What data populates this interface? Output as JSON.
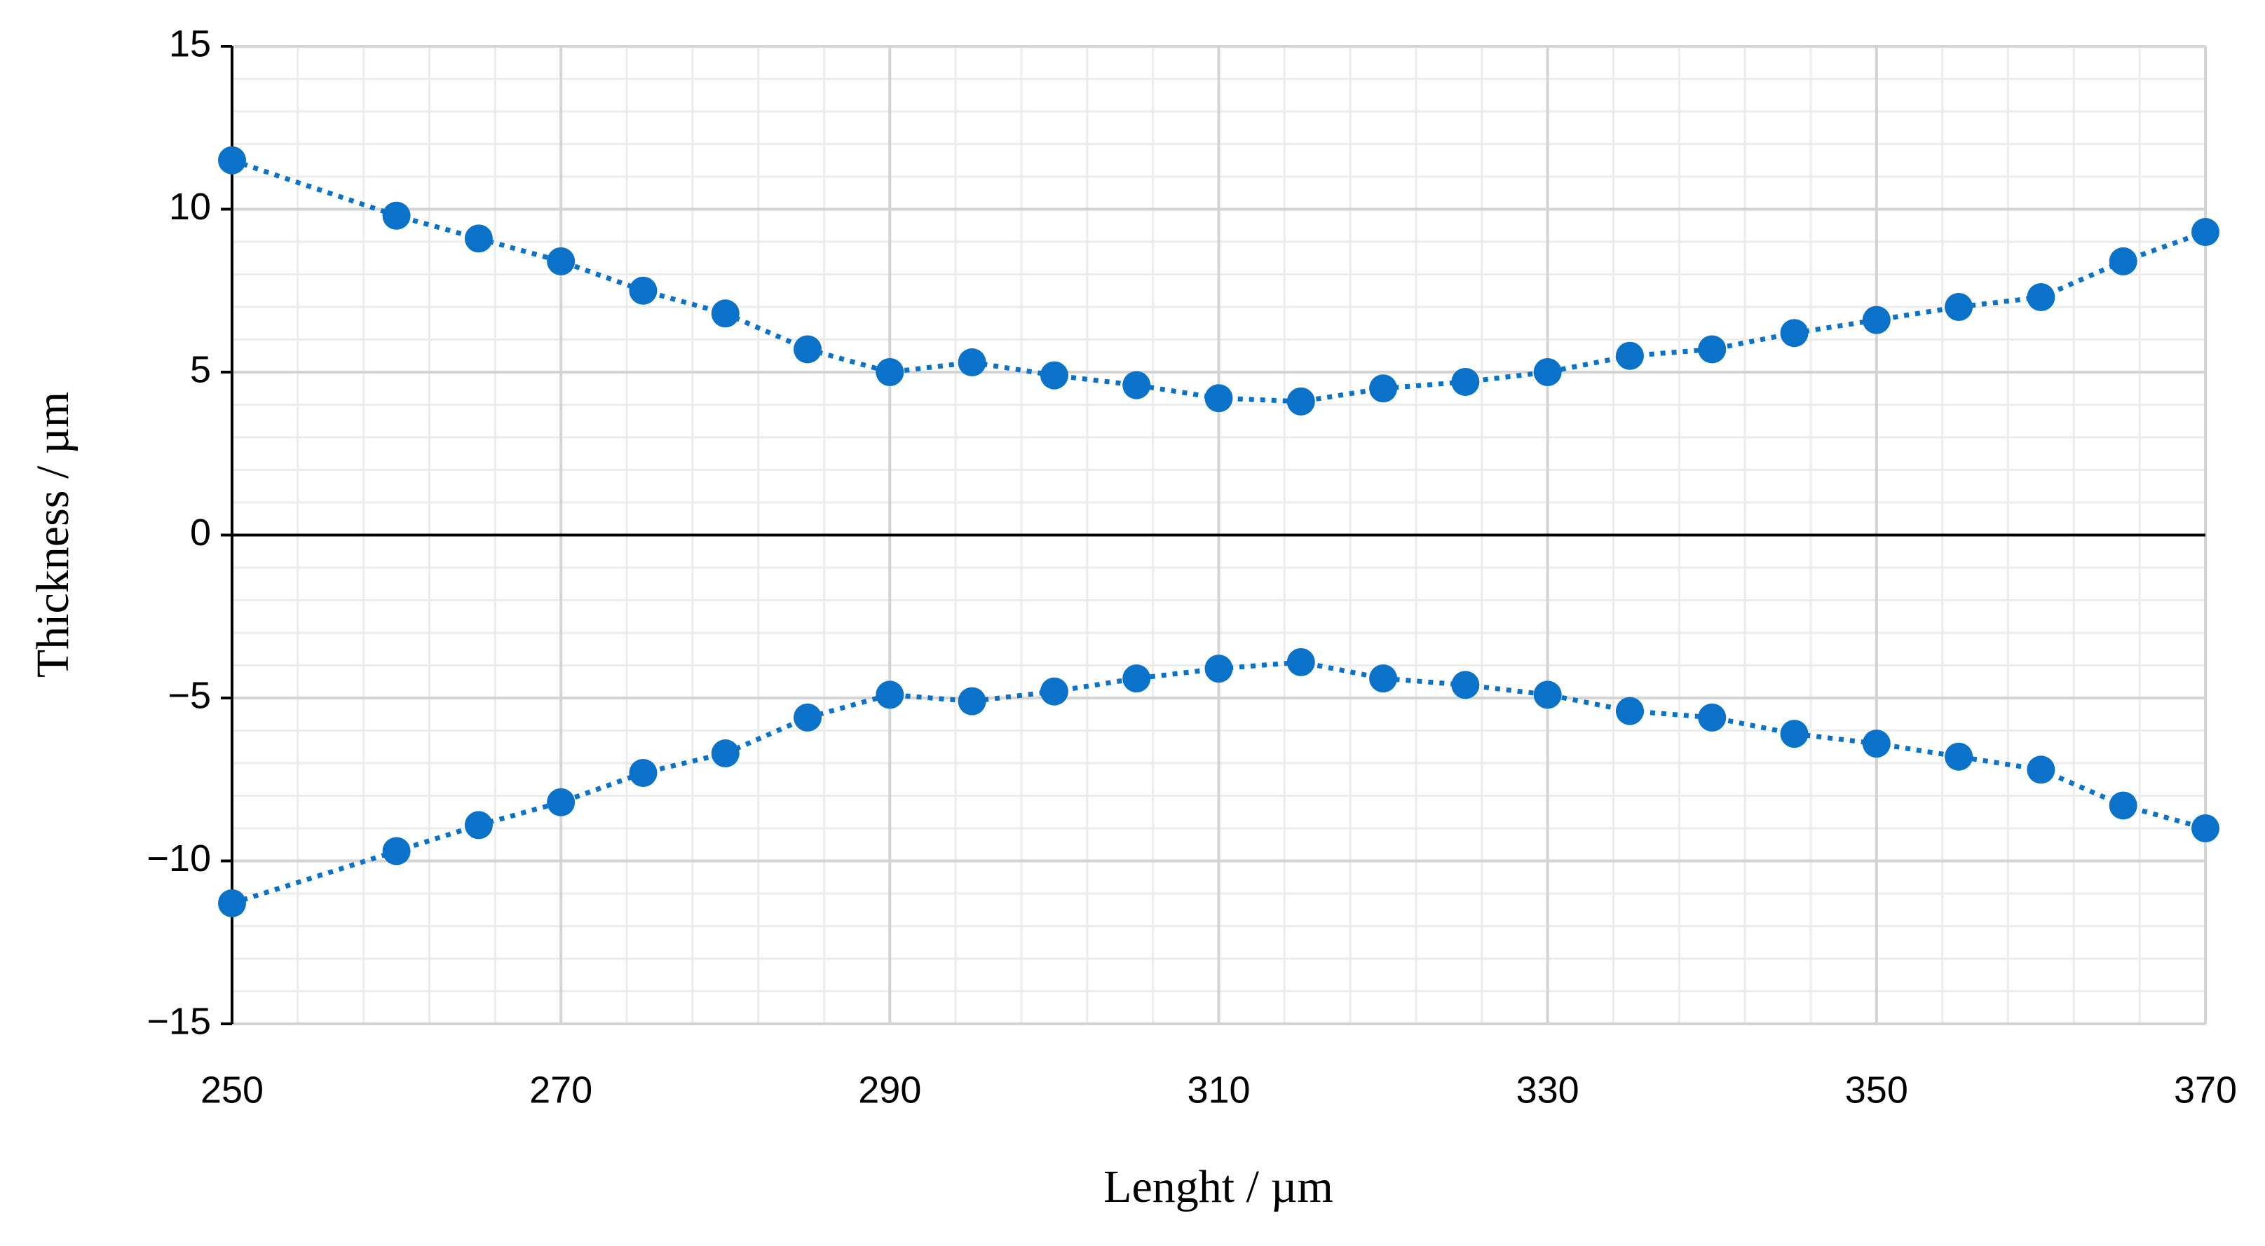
{
  "chart_data": {
    "type": "scatter",
    "x_label": "Lenght / µm",
    "y_label": "Thickness / µm",
    "x": [
      250,
      260,
      265,
      270,
      275,
      280,
      285,
      290,
      295,
      300,
      305,
      310,
      315,
      320,
      325,
      330,
      335,
      340,
      345,
      350,
      355,
      360,
      365,
      370
    ],
    "series": [
      {
        "color": "#0a73c9",
        "values": [
          11.5,
          9.8,
          9.1,
          8.4,
          7.5,
          6.8,
          5.7,
          5.0,
          5.3,
          4.9,
          4.6,
          4.2,
          4.1,
          4.5,
          4.7,
          5.0,
          5.5,
          5.7,
          6.2,
          6.6,
          7.0,
          7.3,
          8.4,
          9.3
        ]
      },
      {
        "color": "#0a73c9",
        "values": [
          -11.3,
          -9.7,
          -8.9,
          -8.2,
          -7.3,
          -6.7,
          -5.6,
          -4.9,
          -5.1,
          -4.8,
          -4.4,
          -4.1,
          -3.9,
          -4.4,
          -4.6,
          -4.9,
          -5.4,
          -5.6,
          -6.1,
          -6.4,
          -6.8,
          -7.2,
          -8.3,
          -9.0
        ]
      }
    ],
    "xlim": [
      250,
      370
    ],
    "ylim": [
      -15,
      15
    ],
    "xticks": [
      250,
      270,
      290,
      310,
      330,
      350,
      370
    ],
    "yticks": [
      15,
      10,
      5,
      0,
      {
        "value": -5,
        "label": "−5"
      },
      {
        "value": -10,
        "label": "−10"
      },
      {
        "value": -15,
        "label": "−15"
      }
    ],
    "grid": true,
    "minor_divisions": 5,
    "line_style": "dotted"
  }
}
